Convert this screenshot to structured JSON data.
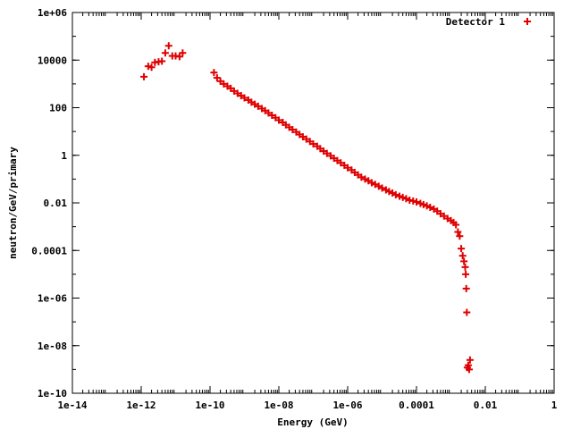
{
  "chart_data": {
    "type": "scatter",
    "xlabel": "Energy (GeV)",
    "ylabel": "neutron/GeV/primary",
    "x_scale": "log",
    "y_scale": "log",
    "xlim": [
      1e-14,
      1
    ],
    "ylim": [
      1e-10,
      1000000.0
    ],
    "x_ticks": [
      1e-14,
      1e-12,
      1e-10,
      1e-08,
      1e-06,
      0.0001,
      0.01,
      1
    ],
    "x_tick_labels": [
      "1e-14",
      "1e-12",
      "1e-10",
      "1e-08",
      "1e-06",
      "0.0001",
      "0.01",
      "1"
    ],
    "y_ticks": [
      1e-10,
      1e-08,
      1e-06,
      0.0001,
      0.01,
      1,
      100,
      10000,
      1000000.0
    ],
    "y_tick_labels": [
      "1e-10",
      "1e-08",
      "1e-06",
      "0.0001",
      "0.01",
      "1",
      "100",
      "10000",
      "1e+06"
    ],
    "legend_position": "top-right",
    "grid": false,
    "marker": "plus",
    "color": "#e00000",
    "series": [
      {
        "name": "Detector 1",
        "points": [
          [
            1.2e-12,
            2000
          ],
          [
            1.6e-12,
            5500
          ],
          [
            2e-12,
            5000
          ],
          [
            2.5e-12,
            8000
          ],
          [
            3.2e-12,
            8500
          ],
          [
            4e-12,
            9000
          ],
          [
            5e-12,
            20000
          ],
          [
            6.3e-12,
            40000
          ],
          [
            8e-12,
            15000
          ],
          [
            1e-11,
            15000
          ],
          [
            1.3e-11,
            14000
          ],
          [
            1.6e-11,
            20000
          ],
          [
            1.3e-10,
            3000
          ],
          [
            1.6e-10,
            1800
          ],
          [
            2e-10,
            1300
          ],
          [
            2.5e-10,
            1000
          ],
          [
            3.2e-10,
            800
          ],
          [
            4e-10,
            650
          ],
          [
            5e-10,
            500
          ],
          [
            6.3e-10,
            400
          ],
          [
            8e-10,
            320
          ],
          [
            1e-09,
            260
          ],
          [
            1.3e-09,
            210
          ],
          [
            1.6e-09,
            170
          ],
          [
            2e-09,
            140
          ],
          [
            2.5e-09,
            115
          ],
          [
            3.2e-09,
            92
          ],
          [
            4e-09,
            75
          ],
          [
            5e-09,
            60
          ],
          [
            6.3e-09,
            48
          ],
          [
            8e-09,
            38
          ],
          [
            1e-08,
            30
          ],
          [
            1.3e-08,
            24
          ],
          [
            1.6e-08,
            19
          ],
          [
            2e-08,
            15
          ],
          [
            2.5e-08,
            12
          ],
          [
            3.2e-08,
            9.5
          ],
          [
            4e-08,
            7.5
          ],
          [
            5e-08,
            6
          ],
          [
            6.3e-08,
            4.8
          ],
          [
            8e-08,
            3.8
          ],
          [
            1e-07,
            3.0
          ],
          [
            1.3e-07,
            2.4
          ],
          [
            1.6e-07,
            1.9
          ],
          [
            2e-07,
            1.5
          ],
          [
            2.5e-07,
            1.2
          ],
          [
            3.2e-07,
            0.95
          ],
          [
            4e-07,
            0.75
          ],
          [
            5e-07,
            0.6
          ],
          [
            6.3e-07,
            0.48
          ],
          [
            8e-07,
            0.38
          ],
          [
            1e-06,
            0.3
          ],
          [
            1.3e-06,
            0.24
          ],
          [
            1.6e-06,
            0.19
          ],
          [
            2e-06,
            0.15
          ],
          [
            2.5e-06,
            0.12
          ],
          [
            3.2e-06,
            0.1
          ],
          [
            4e-06,
            0.085
          ],
          [
            5e-06,
            0.07
          ],
          [
            6.3e-06,
            0.06
          ],
          [
            8e-06,
            0.05
          ],
          [
            1e-05,
            0.042
          ],
          [
            1.3e-05,
            0.035
          ],
          [
            1.6e-05,
            0.03
          ],
          [
            2e-05,
            0.026
          ],
          [
            2.5e-05,
            0.022
          ],
          [
            3.2e-05,
            0.019
          ],
          [
            4e-05,
            0.017
          ],
          [
            5e-05,
            0.015
          ],
          [
            6.3e-05,
            0.013
          ],
          [
            8e-05,
            0.012
          ],
          [
            0.0001,
            0.011
          ],
          [
            0.00013,
            0.0095
          ],
          [
            0.00016,
            0.0085
          ],
          [
            0.0002,
            0.0075
          ],
          [
            0.00025,
            0.0065
          ],
          [
            0.00032,
            0.0055
          ],
          [
            0.0004,
            0.0045
          ],
          [
            0.0005,
            0.0035
          ],
          [
            0.00063,
            0.0028
          ],
          [
            0.0008,
            0.0022
          ],
          [
            0.001,
            0.0018
          ],
          [
            0.0012,
            0.0015
          ],
          [
            0.0014,
            0.0012
          ],
          [
            0.0016,
            0.0006
          ],
          [
            0.0018,
            0.0004
          ],
          [
            0.002,
            0.00012
          ],
          [
            0.0022,
            6e-05
          ],
          [
            0.0024,
            3.5e-05
          ],
          [
            0.0026,
            2e-05
          ],
          [
            0.0027,
            1e-05
          ],
          [
            0.0028,
            2.5e-06
          ],
          [
            0.0029,
            2.5e-07
          ],
          [
            0.003,
            1.2e-09
          ],
          [
            0.0032,
            1.5e-09
          ],
          [
            0.0034,
            1e-09
          ],
          [
            0.0036,
            2.5e-09
          ]
        ]
      }
    ]
  }
}
